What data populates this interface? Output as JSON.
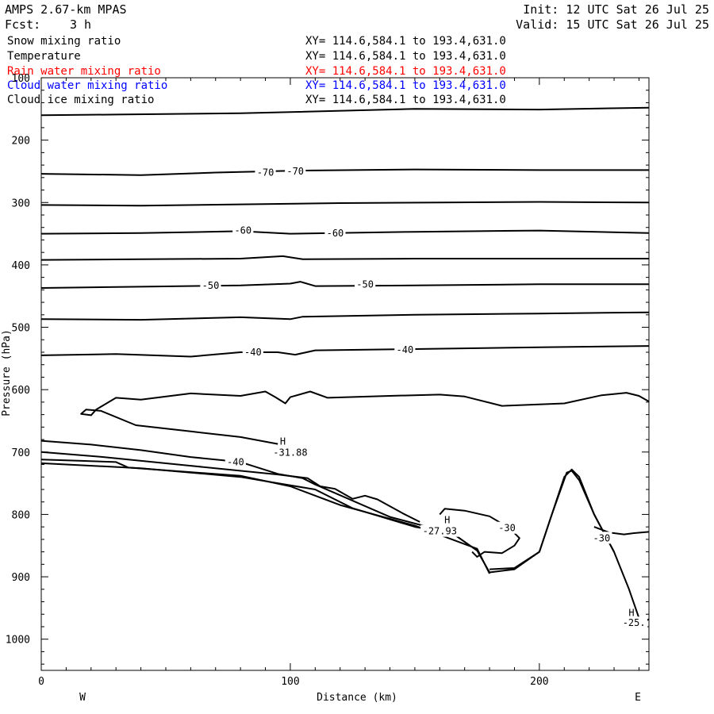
{
  "header": {
    "model": "AMPS 2.67-km MPAS",
    "fcst_label": "Fcst:",
    "fcst_value": "3 h",
    "init": "Init: 12 UTC Sat 26 Jul 25",
    "valid": "Valid: 15 UTC Sat 26 Jul 25"
  },
  "fields": [
    {
      "name": "Snow mixing ratio",
      "xy": "XY= 114.6,584.1 to 193.4,631.0",
      "color": "#000000"
    },
    {
      "name": "Temperature",
      "xy": "XY= 114.6,584.1 to 193.4,631.0",
      "color": "#000000"
    },
    {
      "name": "Rain water mixing ratio",
      "xy": "XY= 114.6,584.1 to 193.4,631.0",
      "color": "#ff0000"
    },
    {
      "name": "Cloud water mixing ratio",
      "xy": "XY= 114.6,584.1 to 193.4,631.0",
      "color": "#0000ff"
    },
    {
      "name": "Cloud ice mixing ratio",
      "xy": "XY= 114.6,584.1 to 193.4,631.0",
      "color": "#000000"
    }
  ],
  "chart_data": {
    "type": "line",
    "xlabel": "Distance (km)",
    "ylabel": "Pressure (hPa)",
    "xlim": [
      0,
      244
    ],
    "ylim": [
      100,
      1050
    ],
    "x_ticks": [
      0,
      100,
      200
    ],
    "y_ticks": [
      100,
      200,
      300,
      400,
      500,
      600,
      700,
      800,
      900,
      1000
    ],
    "left_end_label": "W",
    "right_end_label": "E",
    "series": [
      {
        "values": [
          [
            0,
            160
          ],
          [
            30,
            159
          ],
          [
            80,
            157
          ],
          [
            150,
            150
          ],
          [
            200,
            151
          ],
          [
            244,
            148
          ]
        ]
      },
      {
        "values": [
          [
            0,
            254
          ],
          [
            40,
            256
          ],
          [
            70,
            252
          ],
          [
            100,
            249
          ],
          [
            150,
            247
          ],
          [
            200,
            248
          ],
          [
            244,
            248
          ]
        ]
      },
      {
        "values": [
          [
            0,
            304
          ],
          [
            40,
            305
          ],
          [
            80,
            303
          ],
          [
            120,
            301
          ],
          [
            160,
            300
          ],
          [
            200,
            299
          ],
          [
            244,
            300
          ]
        ]
      },
      {
        "values": [
          [
            0,
            350
          ],
          [
            40,
            349
          ],
          [
            80,
            346
          ],
          [
            100,
            350
          ],
          [
            150,
            347
          ],
          [
            200,
            345
          ],
          [
            244,
            349
          ]
        ]
      },
      {
        "values": [
          [
            0,
            392
          ],
          [
            40,
            391
          ],
          [
            80,
            390
          ],
          [
            97,
            386
          ],
          [
            105,
            391
          ],
          [
            150,
            390
          ],
          [
            200,
            390
          ],
          [
            244,
            390
          ]
        ]
      },
      {
        "values": [
          [
            0,
            437
          ],
          [
            40,
            435
          ],
          [
            80,
            433
          ],
          [
            100,
            430
          ],
          [
            104,
            427
          ],
          [
            110,
            434
          ],
          [
            150,
            433
          ],
          [
            200,
            431
          ],
          [
            244,
            431
          ]
        ]
      },
      {
        "values": [
          [
            0,
            487
          ],
          [
            40,
            488
          ],
          [
            80,
            484
          ],
          [
            100,
            487
          ],
          [
            105,
            483
          ],
          [
            150,
            480
          ],
          [
            200,
            478
          ],
          [
            244,
            476
          ]
        ]
      },
      {
        "values": [
          [
            0,
            545
          ],
          [
            30,
            543
          ],
          [
            60,
            547
          ],
          [
            80,
            540
          ],
          [
            95,
            540
          ],
          [
            102,
            544
          ],
          [
            110,
            537
          ],
          [
            150,
            535
          ],
          [
            200,
            532
          ],
          [
            244,
            530
          ]
        ]
      },
      {
        "values": [
          [
            244,
            619
          ],
          [
            240,
            610
          ],
          [
            235,
            605
          ],
          [
            225,
            609
          ],
          [
            210,
            622
          ],
          [
            185,
            626
          ],
          [
            170,
            611
          ],
          [
            160,
            608
          ],
          [
            140,
            610
          ],
          [
            115,
            613
          ],
          [
            108,
            603
          ],
          [
            100,
            612
          ],
          [
            98,
            622
          ],
          [
            94,
            612
          ],
          [
            90,
            603
          ],
          [
            80,
            610
          ],
          [
            60,
            606
          ],
          [
            40,
            616
          ],
          [
            30,
            613
          ],
          [
            22,
            632
          ],
          [
            20,
            641
          ],
          [
            16,
            639
          ],
          [
            18,
            632
          ],
          [
            24,
            634
          ],
          [
            38,
            657
          ],
          [
            60,
            667
          ],
          [
            80,
            676
          ],
          [
            95,
            687
          ]
        ]
      },
      {
        "values": [
          [
            0,
            700
          ],
          [
            25,
            708
          ],
          [
            60,
            722
          ],
          [
            95,
            736
          ],
          [
            107,
            742
          ],
          [
            112,
            755
          ],
          [
            118,
            759
          ],
          [
            125,
            775
          ],
          [
            130,
            770
          ],
          [
            135,
            776
          ],
          [
            145,
            798
          ],
          [
            152,
            812
          ]
        ]
      },
      {
        "values": [
          [
            0,
            682
          ],
          [
            20,
            688
          ],
          [
            40,
            697
          ],
          [
            60,
            708
          ],
          [
            80,
            716
          ],
          [
            95,
            735
          ],
          [
            105,
            742
          ],
          [
            110,
            752
          ],
          [
            125,
            778
          ],
          [
            140,
            804
          ],
          [
            160,
            825
          ],
          [
            163,
            831
          ]
        ]
      },
      {
        "values": [
          [
            0,
            718
          ],
          [
            40,
            726
          ],
          [
            80,
            740
          ],
          [
            95,
            750
          ],
          [
            110,
            760
          ],
          [
            125,
            790
          ],
          [
            150,
            820
          ],
          [
            165,
            830
          ],
          [
            175,
            858
          ],
          [
            180,
            893
          ],
          [
            190,
            888
          ],
          [
            200,
            860
          ],
          [
            205,
            800
          ],
          [
            210,
            740
          ],
          [
            213,
            728
          ],
          [
            216,
            740
          ],
          [
            222,
            800
          ],
          [
            230,
            860
          ],
          [
            236,
            920
          ],
          [
            240,
            966
          ],
          [
            243,
            970
          ],
          [
            244,
            968
          ]
        ]
      },
      {
        "values": [
          [
            0,
            712
          ],
          [
            15,
            714
          ],
          [
            30,
            716
          ],
          [
            35,
            725
          ],
          [
            80,
            738
          ],
          [
            100,
            755
          ],
          [
            120,
            785
          ],
          [
            150,
            818
          ],
          [
            175,
            855
          ],
          [
            180,
            895
          ]
        ]
      },
      {
        "values": [
          [
            180,
            888
          ],
          [
            190,
            886
          ],
          [
            200,
            860
          ],
          [
            205,
            800
          ],
          [
            211,
            733
          ],
          [
            213,
            730
          ],
          [
            216,
            745
          ],
          [
            222,
            800
          ],
          [
            230,
            860
          ]
        ]
      },
      {
        "values": [
          [
            160,
            800
          ],
          [
            162,
            791
          ],
          [
            170,
            794
          ],
          [
            180,
            803
          ],
          [
            188,
            822
          ],
          [
            192,
            838
          ],
          [
            190,
            850
          ],
          [
            185,
            862
          ],
          [
            178,
            860
          ],
          [
            175,
            868
          ],
          [
            173,
            860
          ]
        ]
      },
      {
        "values": [
          [
            222,
            820
          ],
          [
            228,
            829
          ],
          [
            234,
            832
          ],
          [
            238,
            830
          ],
          [
            244,
            828
          ]
        ]
      }
    ],
    "annotations": [
      {
        "text": "-70",
        "x": 90,
        "y": 252
      },
      {
        "text": "-70",
        "x": 102,
        "y": 250
      },
      {
        "text": "-60",
        "x": 81,
        "y": 345
      },
      {
        "text": "-60",
        "x": 118,
        "y": 349
      },
      {
        "text": "-50",
        "x": 68,
        "y": 433
      },
      {
        "text": "-50",
        "x": 130,
        "y": 431
      },
      {
        "text": "-40",
        "x": 85,
        "y": 540
      },
      {
        "text": "-40",
        "x": 146,
        "y": 536
      },
      {
        "text": "H",
        "x": 97,
        "y": 683
      },
      {
        "text": "-31.88",
        "x": 100,
        "y": 701
      },
      {
        "text": "-40",
        "x": 78,
        "y": 716
      },
      {
        "text": "H",
        "x": 163,
        "y": 809
      },
      {
        "text": "-27.93",
        "x": 160,
        "y": 827
      },
      {
        "text": "-30",
        "x": 187,
        "y": 822
      },
      {
        "text": "-30",
        "x": 225,
        "y": 838
      },
      {
        "text": "H",
        "x": 237,
        "y": 958
      },
      {
        "text": "-25.",
        "x": 238,
        "y": 974
      }
    ],
    "grid": false
  }
}
